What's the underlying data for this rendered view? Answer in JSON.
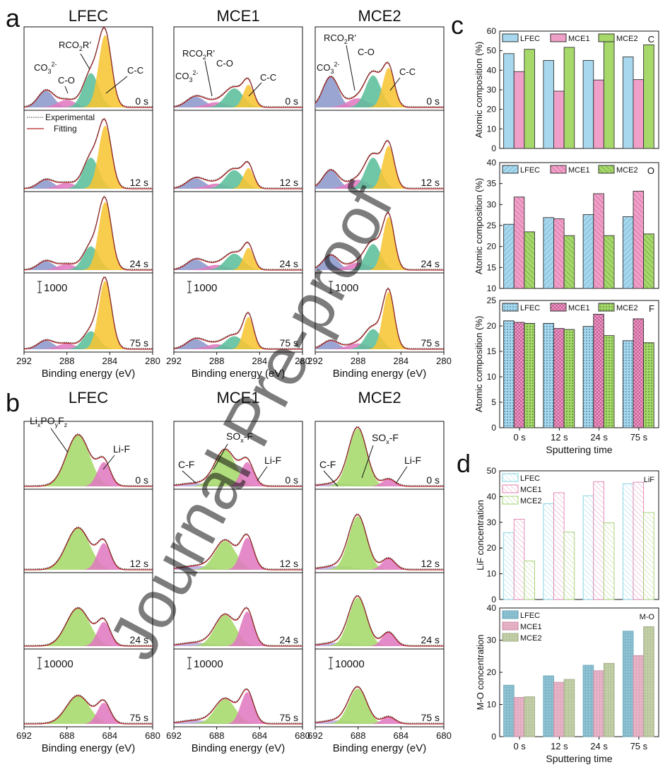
{
  "figure": {
    "panel_labels": [
      "a",
      "b",
      "c",
      "d"
    ],
    "watermark": "Journal Pre-proof"
  },
  "colors": {
    "blue": "#8c9acb",
    "pink": "#e07ac0",
    "teal": "#5bbf9b",
    "yellow": "#f7c534",
    "green": "#a6d96a",
    "lavender": "#b9a9dc",
    "fit": "#b22222",
    "c_lfec": "#a8d8ee",
    "c_mce1": "#f0a0c8",
    "c_mce2": "#a6d96a",
    "d_lfec": "#7ab8c8",
    "d_mce1": "#e0a0b8",
    "d_mce2": "#b8c8a0"
  },
  "panel_a": {
    "columns": [
      "LFEC",
      "MCE1",
      "MCE2"
    ],
    "times": [
      "0 s",
      "12 s",
      "24 s",
      "75 s"
    ],
    "xlabel": "Binding energy (eV)",
    "xticks": [
      "292",
      "288",
      "284",
      "280"
    ],
    "scale_bar": "1000",
    "legend": [
      "Experimental",
      "Fitting"
    ],
    "peak_labels": {
      "co3": "CO",
      "co3_sub": "3",
      "co3_sup": "2-",
      "co": "C-O",
      "rco2r_a": "RCO",
      "rco2r_sub": "2",
      "rco2r_b": "R’",
      "cc": "C-C"
    }
  },
  "panel_b": {
    "columns": [
      "LFEC",
      "MCE1",
      "MCE2"
    ],
    "times": [
      "0 s",
      "12 s",
      "24 s",
      "75 s"
    ],
    "xlabel": "Binding energy (eV)",
    "xticks": [
      "692",
      "688",
      "684",
      "680"
    ],
    "scale_bar": "10000",
    "peak_labels": {
      "lipo_li": "Li",
      "lipo_x": "x",
      "lipo_po": "PO",
      "lipo_y": "y",
      "lipo_f": "F",
      "lipo_z": "z",
      "lif": "Li-F",
      "cf": "C-F",
      "sox_a": "SO",
      "sox_x": "x",
      "sox_b": "-F"
    }
  },
  "chart_data": [
    {
      "id": "c_C",
      "type": "bar",
      "panel": "c",
      "categories": [
        "0 s",
        "12 s",
        "24 s",
        "75 s"
      ],
      "series": [
        {
          "name": "LFEC",
          "values": [
            48.5,
            45,
            45,
            46.8
          ]
        },
        {
          "name": "MCE1",
          "values": [
            39.3,
            29.3,
            35,
            35.2
          ]
        },
        {
          "name": "MCE2",
          "values": [
            50.7,
            51.7,
            55,
            53
          ]
        }
      ],
      "element_label": "C",
      "ylabel": "Atomic  composition  (%)",
      "ylim": [
        0,
        60
      ],
      "yticks": [
        0,
        10,
        20,
        30,
        40,
        50,
        60
      ]
    },
    {
      "id": "c_O",
      "type": "bar",
      "panel": "c",
      "categories": [
        "0 s",
        "12 s",
        "24 s",
        "75 s"
      ],
      "series": [
        {
          "name": "LFEC",
          "values": [
            25.3,
            26.9,
            27.6,
            27.1
          ]
        },
        {
          "name": "MCE1",
          "values": [
            31.8,
            26.6,
            32.6,
            33.2
          ]
        },
        {
          "name": "MCE2",
          "values": [
            23.5,
            22.6,
            22.6,
            23
          ]
        }
      ],
      "element_label": "O",
      "ylabel": "Atomic  composition  (%)",
      "ylim": [
        10,
        40
      ],
      "yticks": [
        10,
        15,
        20,
        25,
        30,
        35,
        40
      ]
    },
    {
      "id": "c_F",
      "type": "bar",
      "panel": "c",
      "categories": [
        "0 s",
        "12 s",
        "24 s",
        "75 s"
      ],
      "series": [
        {
          "name": "LFEC",
          "values": [
            21,
            20.5,
            19.9,
            17.1
          ]
        },
        {
          "name": "MCE1",
          "values": [
            20.7,
            19.5,
            22.3,
            21.4
          ]
        },
        {
          "name": "MCE2",
          "values": [
            20.5,
            19.3,
            18.1,
            16.7
          ]
        }
      ],
      "element_label": "F",
      "ylabel": "Atomic  composition  (%)",
      "xlabel": "Sputtering time",
      "ylim": [
        0,
        25
      ],
      "yticks": [
        0,
        5,
        10,
        15,
        20,
        25
      ]
    },
    {
      "id": "d_LiF",
      "type": "bar",
      "panel": "d",
      "categories": [
        "0 s",
        "12 s",
        "24 s",
        "75 s"
      ],
      "series": [
        {
          "name": "LFEC",
          "values": [
            26,
            37.2,
            40.3,
            45
          ]
        },
        {
          "name": "MCE1",
          "values": [
            31.2,
            41.5,
            45.8,
            45.6
          ]
        },
        {
          "name": "MCE2",
          "values": [
            15,
            26.2,
            29.8,
            33.8
          ]
        }
      ],
      "element_label": "LiF",
      "ylabel": "LiF concentration",
      "ylim": [
        0,
        50
      ],
      "yticks": [
        0,
        10,
        20,
        30,
        40,
        50
      ]
    },
    {
      "id": "d_MO",
      "type": "bar",
      "panel": "d",
      "categories": [
        "0 s",
        "12 s",
        "24 s",
        "75 s"
      ],
      "series": [
        {
          "name": "LFEC",
          "values": [
            16,
            18.9,
            22.2,
            32.8
          ]
        },
        {
          "name": "MCE1",
          "values": [
            12.2,
            16.9,
            20.5,
            25.2
          ]
        },
        {
          "name": "MCE2",
          "values": [
            12.4,
            17.8,
            22.8,
            34.2
          ]
        }
      ],
      "element_label": "M-O",
      "ylabel": "M-O concentration",
      "xlabel": "Sputtering time",
      "ylim": [
        0,
        40
      ],
      "yticks": [
        0,
        10,
        20,
        30,
        40
      ]
    }
  ]
}
